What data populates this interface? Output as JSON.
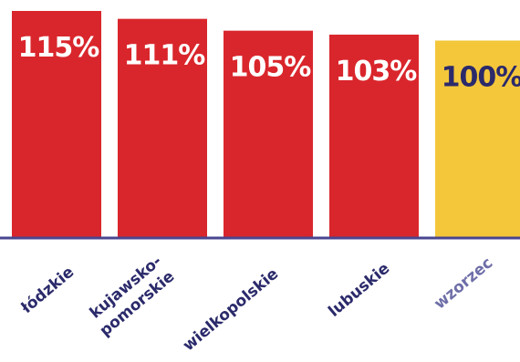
{
  "chart_data": {
    "type": "bar",
    "categories": [
      [
        "łódzkie"
      ],
      [
        "kujawsko-",
        "pomorskie"
      ],
      [
        "wielkopolskie"
      ],
      [
        "lubuskie"
      ],
      [
        "wzorzec"
      ]
    ],
    "values": [
      115,
      111,
      105,
      103,
      100
    ],
    "value_labels": [
      "115%",
      "111%",
      "105%",
      "103%",
      "100%"
    ],
    "ylim": [
      0,
      115
    ],
    "grid": false,
    "legend": "none",
    "colors": {
      "bar": "#d9262c",
      "reference_bar": "#f4c73b",
      "label_on_bar": "#ffffff",
      "label_on_reference": "#2b2a6b",
      "category_text": "#2b2a6b",
      "reference_category_text": "#6e6ea8",
      "axis": "#4a4690"
    }
  }
}
